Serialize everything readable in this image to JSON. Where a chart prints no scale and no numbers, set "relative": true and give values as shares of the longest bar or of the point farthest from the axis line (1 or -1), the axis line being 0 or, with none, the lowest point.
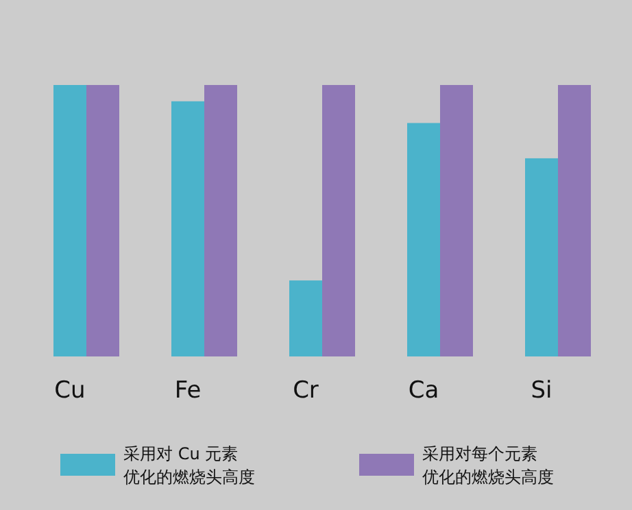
{
  "chart_data": {
    "type": "bar",
    "relative": true,
    "categories": [
      "Cu",
      "Fe",
      "Cr",
      "Ca",
      "Si"
    ],
    "legend": "bottom",
    "series": [
      {
        "name": "采用对 Cu 元素优化的燃烧头高度",
        "color": "#4bb3cb",
        "values": [
          1,
          0.94,
          0.28,
          0.86,
          0.73
        ]
      },
      {
        "name": "采用对每个元素优化的燃烧头高度",
        "color": "#8f78b6",
        "values": [
          1,
          1,
          1,
          1,
          1
        ]
      }
    ]
  }
}
